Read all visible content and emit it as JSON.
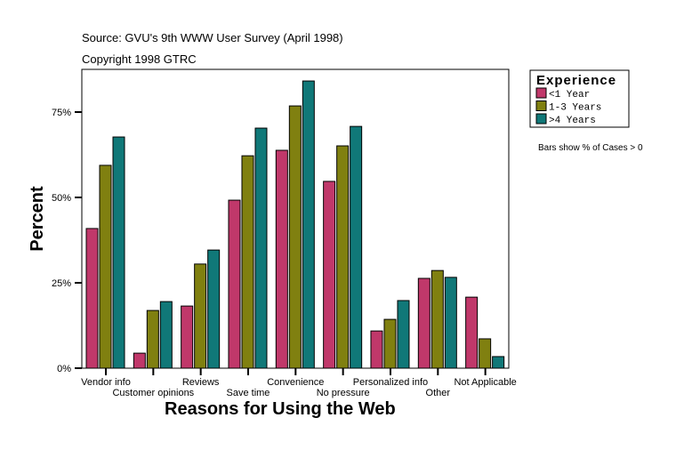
{
  "header": {
    "source": "Source: GVU's 9th WWW User Survey (April 1998)",
    "copyright": "Copyright 1998 GTRC"
  },
  "note": "Bars show % of Cases > 0",
  "chart_data": {
    "type": "bar",
    "title": "",
    "xlabel": "Reasons for Using the Web",
    "ylabel": "Percent",
    "ylim": [
      0,
      87.5
    ],
    "yticks": [
      0,
      25,
      50,
      75
    ],
    "ytick_labels": [
      "0%",
      "25%",
      "50%",
      "75%"
    ],
    "grid": false,
    "legend": {
      "title": "Experience",
      "position": "top-right"
    },
    "categories": [
      "Vendor info",
      "Customer opinions",
      "Reviews",
      "Save time",
      "Convenience",
      "No pressure",
      "Personalized info",
      "Other",
      "Not Applicable"
    ],
    "series": [
      {
        "name": "<1 Year",
        "color": "#c0386a",
        "values": [
          40.9,
          4.4,
          18.2,
          49.2,
          63.8,
          54.7,
          10.9,
          26.3,
          20.8
        ]
      },
      {
        "name": "1-3 Years",
        "color": "#808010",
        "values": [
          59.4,
          16.9,
          30.5,
          62.2,
          76.8,
          65.1,
          14.3,
          28.6,
          8.6
        ]
      },
      {
        "name": ">4 Years",
        "color": "#107878",
        "values": [
          67.7,
          19.5,
          34.6,
          70.3,
          84.1,
          70.8,
          19.8,
          26.6,
          3.4
        ]
      }
    ]
  }
}
